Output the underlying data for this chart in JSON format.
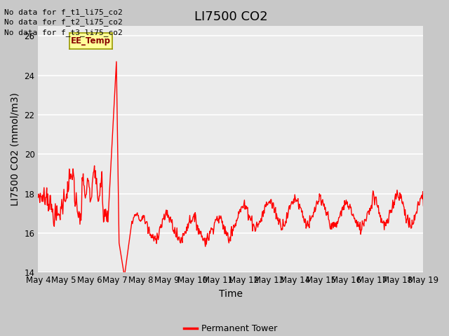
{
  "title": "LI7500 CO2",
  "ylabel": "LI7500 CO2 (mmol/m3)",
  "xlabel": "Time",
  "ylim": [
    14,
    26.5
  ],
  "yticks": [
    14,
    16,
    18,
    20,
    22,
    24,
    26
  ],
  "xtick_labels": [
    "May 4",
    "May 5",
    "May 6",
    "May 7",
    "May 8",
    "May 9",
    "May 10",
    "May 11",
    "May 12",
    "May 13",
    "May 14",
    "May 15",
    "May 16",
    "May 17",
    "May 18",
    "May 19"
  ],
  "line_color": "#ff0000",
  "line_width": 1.0,
  "plot_bg_color": "#ebebeb",
  "fig_bg_color": "#c8c8c8",
  "legend_label": "Permanent Tower",
  "no_data_texts": [
    "No data for f_t1_li75_co2",
    "No data for f_t2_li75_co2",
    "No data for f_t3_li75_co2"
  ],
  "ee_temp_box_color": "#ffff99",
  "ee_temp_box_edgecolor": "#999900",
  "title_fontsize": 13,
  "axis_label_fontsize": 10,
  "tick_fontsize": 8.5,
  "no_data_fontsize": 8,
  "legend_fontsize": 9
}
